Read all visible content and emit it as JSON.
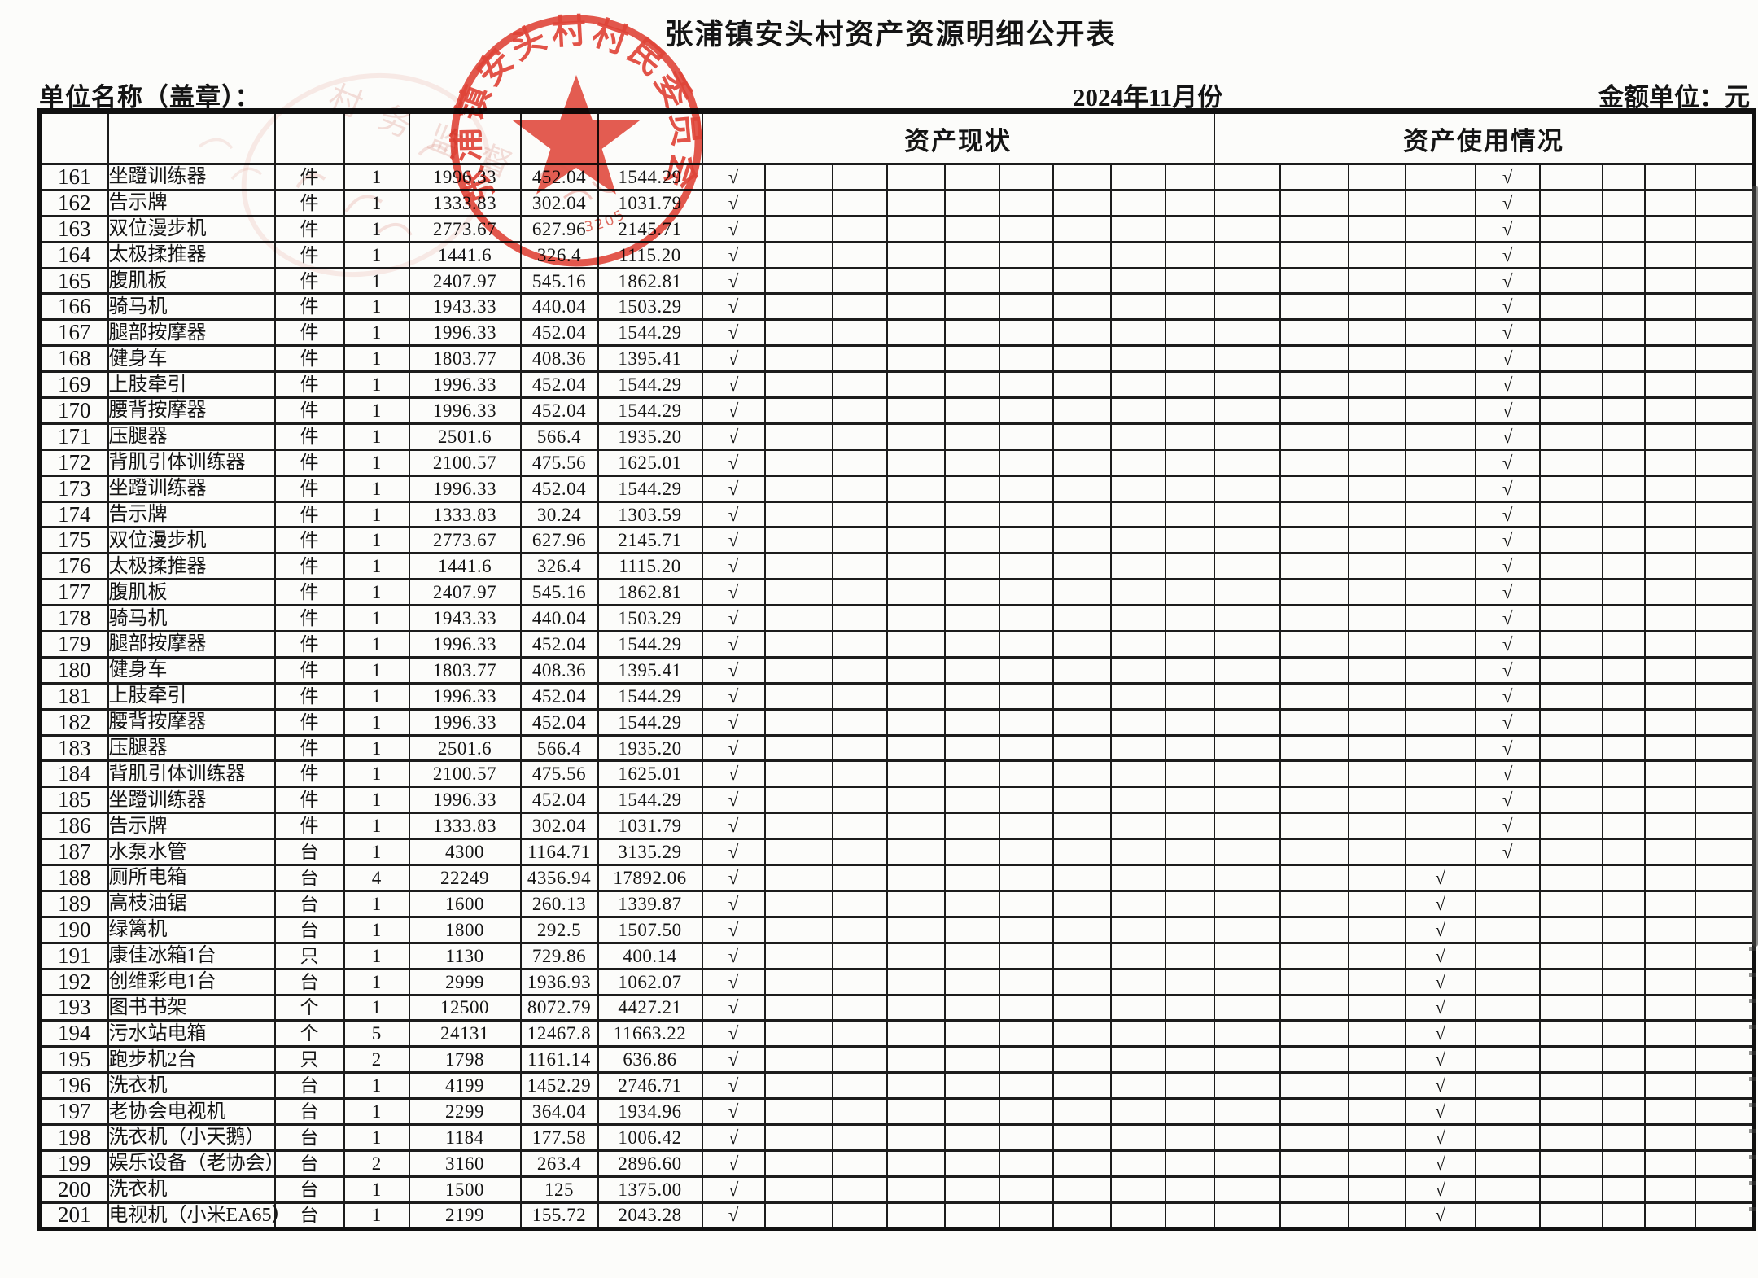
{
  "page": {
    "title": "张浦镇安头村资产资源明细公开表",
    "unit_name_label": "单位名称（盖章）：",
    "period": "2024年11月份",
    "amount_unit_label": "金额单位：元"
  },
  "stamps": {
    "main_stamp_text": "张浦镇安头村村民委员会",
    "main_stamp_code": "32059",
    "secondary_stamp_text": "村务监督"
  },
  "table": {
    "status_group_label": "资产现状",
    "usage_group_label": "资产使用情况",
    "checkmark": "√",
    "status_check_col": 0,
    "rows": [
      {
        "no": "161",
        "name": "坐蹬训练器",
        "unit": "件",
        "qty": "1",
        "orig": "1996.33",
        "dep": "452.04",
        "net": "1544.29",
        "u": 4
      },
      {
        "no": "162",
        "name": "告示牌",
        "unit": "件",
        "qty": "1",
        "orig": "1333.83",
        "dep": "302.04",
        "net": "1031.79",
        "u": 4
      },
      {
        "no": "163",
        "name": "双位漫步机",
        "unit": "件",
        "qty": "1",
        "orig": "2773.67",
        "dep": "627.96",
        "net": "2145.71",
        "u": 4
      },
      {
        "no": "164",
        "name": "太极揉推器",
        "unit": "件",
        "qty": "1",
        "orig": "1441.6",
        "dep": "326.4",
        "net": "1115.20",
        "u": 4
      },
      {
        "no": "165",
        "name": "腹肌板",
        "unit": "件",
        "qty": "1",
        "orig": "2407.97",
        "dep": "545.16",
        "net": "1862.81",
        "u": 4
      },
      {
        "no": "166",
        "name": "骑马机",
        "unit": "件",
        "qty": "1",
        "orig": "1943.33",
        "dep": "440.04",
        "net": "1503.29",
        "u": 4
      },
      {
        "no": "167",
        "name": "腿部按摩器",
        "unit": "件",
        "qty": "1",
        "orig": "1996.33",
        "dep": "452.04",
        "net": "1544.29",
        "u": 4
      },
      {
        "no": "168",
        "name": "健身车",
        "unit": "件",
        "qty": "1",
        "orig": "1803.77",
        "dep": "408.36",
        "net": "1395.41",
        "u": 4
      },
      {
        "no": "169",
        "name": "上肢牵引",
        "unit": "件",
        "qty": "1",
        "orig": "1996.33",
        "dep": "452.04",
        "net": "1544.29",
        "u": 4
      },
      {
        "no": "170",
        "name": "腰背按摩器",
        "unit": "件",
        "qty": "1",
        "orig": "1996.33",
        "dep": "452.04",
        "net": "1544.29",
        "u": 4
      },
      {
        "no": "171",
        "name": "压腿器",
        "unit": "件",
        "qty": "1",
        "orig": "2501.6",
        "dep": "566.4",
        "net": "1935.20",
        "u": 4
      },
      {
        "no": "172",
        "name": "背肌引体训练器",
        "unit": "件",
        "qty": "1",
        "orig": "2100.57",
        "dep": "475.56",
        "net": "1625.01",
        "u": 4
      },
      {
        "no": "173",
        "name": "坐蹬训练器",
        "unit": "件",
        "qty": "1",
        "orig": "1996.33",
        "dep": "452.04",
        "net": "1544.29",
        "u": 4
      },
      {
        "no": "174",
        "name": "告示牌",
        "unit": "件",
        "qty": "1",
        "orig": "1333.83",
        "dep": "30.24",
        "net": "1303.59",
        "u": 4
      },
      {
        "no": "175",
        "name": "双位漫步机",
        "unit": "件",
        "qty": "1",
        "orig": "2773.67",
        "dep": "627.96",
        "net": "2145.71",
        "u": 4
      },
      {
        "no": "176",
        "name": "太极揉推器",
        "unit": "件",
        "qty": "1",
        "orig": "1441.6",
        "dep": "326.4",
        "net": "1115.20",
        "u": 4
      },
      {
        "no": "177",
        "name": "腹肌板",
        "unit": "件",
        "qty": "1",
        "orig": "2407.97",
        "dep": "545.16",
        "net": "1862.81",
        "u": 4
      },
      {
        "no": "178",
        "name": "骑马机",
        "unit": "件",
        "qty": "1",
        "orig": "1943.33",
        "dep": "440.04",
        "net": "1503.29",
        "u": 4
      },
      {
        "no": "179",
        "name": "腿部按摩器",
        "unit": "件",
        "qty": "1",
        "orig": "1996.33",
        "dep": "452.04",
        "net": "1544.29",
        "u": 4
      },
      {
        "no": "180",
        "name": "健身车",
        "unit": "件",
        "qty": "1",
        "orig": "1803.77",
        "dep": "408.36",
        "net": "1395.41",
        "u": 4
      },
      {
        "no": "181",
        "name": "上肢牵引",
        "unit": "件",
        "qty": "1",
        "orig": "1996.33",
        "dep": "452.04",
        "net": "1544.29",
        "u": 4
      },
      {
        "no": "182",
        "name": "腰背按摩器",
        "unit": "件",
        "qty": "1",
        "orig": "1996.33",
        "dep": "452.04",
        "net": "1544.29",
        "u": 4
      },
      {
        "no": "183",
        "name": "压腿器",
        "unit": "件",
        "qty": "1",
        "orig": "2501.6",
        "dep": "566.4",
        "net": "1935.20",
        "u": 4
      },
      {
        "no": "184",
        "name": "背肌引体训练器",
        "unit": "件",
        "qty": "1",
        "orig": "2100.57",
        "dep": "475.56",
        "net": "1625.01",
        "u": 4
      },
      {
        "no": "185",
        "name": "坐蹬训练器",
        "unit": "件",
        "qty": "1",
        "orig": "1996.33",
        "dep": "452.04",
        "net": "1544.29",
        "u": 4
      },
      {
        "no": "186",
        "name": "告示牌",
        "unit": "件",
        "qty": "1",
        "orig": "1333.83",
        "dep": "302.04",
        "net": "1031.79",
        "u": 4
      },
      {
        "no": "187",
        "name": "水泵水管",
        "unit": "台",
        "qty": "1",
        "orig": "4300",
        "dep": "1164.71",
        "net": "3135.29",
        "u": 4
      },
      {
        "no": "188",
        "name": "厕所电箱",
        "unit": "台",
        "qty": "4",
        "orig": "22249",
        "dep": "4356.94",
        "net": "17892.06",
        "u": 3
      },
      {
        "no": "189",
        "name": "高枝油锯",
        "unit": "台",
        "qty": "1",
        "orig": "1600",
        "dep": "260.13",
        "net": "1339.87",
        "u": 3
      },
      {
        "no": "190",
        "name": "绿篱机",
        "unit": "台",
        "qty": "1",
        "orig": "1800",
        "dep": "292.5",
        "net": "1507.50",
        "u": 3
      },
      {
        "no": "191",
        "name": "康佳冰箱1台",
        "unit": "只",
        "qty": "1",
        "orig": "1130",
        "dep": "729.86",
        "net": "400.14",
        "u": 3
      },
      {
        "no": "192",
        "name": "创维彩电1台",
        "unit": "台",
        "qty": "1",
        "orig": "2999",
        "dep": "1936.93",
        "net": "1062.07",
        "u": 3
      },
      {
        "no": "193",
        "name": "图书书架",
        "unit": "个",
        "qty": "1",
        "orig": "12500",
        "dep": "8072.79",
        "net": "4427.21",
        "u": 3
      },
      {
        "no": "194",
        "name": "污水站电箱",
        "unit": "个",
        "qty": "5",
        "orig": "24131",
        "dep": "12467.8",
        "net": "11663.22",
        "u": 3
      },
      {
        "no": "195",
        "name": "跑步机2台",
        "unit": "只",
        "qty": "2",
        "orig": "1798",
        "dep": "1161.14",
        "net": "636.86",
        "u": 3
      },
      {
        "no": "196",
        "name": "洗衣机",
        "unit": "台",
        "qty": "1",
        "orig": "4199",
        "dep": "1452.29",
        "net": "2746.71",
        "u": 3
      },
      {
        "no": "197",
        "name": "老协会电视机",
        "unit": "台",
        "qty": "1",
        "orig": "2299",
        "dep": "364.04",
        "net": "1934.96",
        "u": 3
      },
      {
        "no": "198",
        "name": "洗衣机（小天鹅）",
        "unit": "台",
        "qty": "1",
        "orig": "1184",
        "dep": "177.58",
        "net": "1006.42",
        "u": 3
      },
      {
        "no": "199",
        "name": "娱乐设备（老协会）",
        "unit": "台",
        "qty": "2",
        "orig": "3160",
        "dep": "263.4",
        "net": "2896.60",
        "u": 3
      },
      {
        "no": "200",
        "name": "洗衣机",
        "unit": "台",
        "qty": "1",
        "orig": "1500",
        "dep": "125",
        "net": "1375.00",
        "u": 3
      },
      {
        "no": "201",
        "name": "电视机（小米EA65）",
        "unit": "台",
        "qty": "1",
        "orig": "2199",
        "dep": "155.72",
        "net": "2043.28",
        "u": 3
      }
    ]
  }
}
